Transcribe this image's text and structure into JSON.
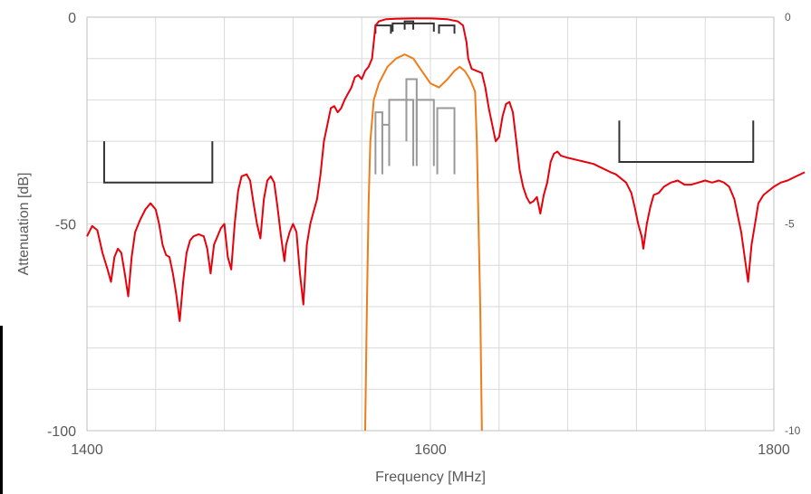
{
  "chart_data": {
    "type": "line",
    "title": "",
    "xlabel": "Frequency [MHz]",
    "ylabel": "Attenuation [dB]",
    "xlim": [
      1400,
      1800
    ],
    "ylim": [
      -100,
      0
    ],
    "y2lim": [
      -10,
      0
    ],
    "x_ticks": [
      "1400",
      "1600",
      "1800"
    ],
    "y_ticks": [
      "0",
      "-50",
      "-100"
    ],
    "y2_ticks": [
      "0",
      "-5",
      "-10"
    ],
    "grid": true,
    "colors": {
      "wide_response": "#e8000b",
      "passband_response": "#f07c18",
      "spec_outline": "#333333",
      "spec_passband": "#999999",
      "grid": "#d9d9d9"
    },
    "series": [
      {
        "axis": "left",
        "color": "#e8000b",
        "points": [
          [
            1400,
            -53
          ],
          [
            1403,
            -50.5
          ],
          [
            1406,
            -51.5
          ],
          [
            1409,
            -57
          ],
          [
            1412,
            -61
          ],
          [
            1414,
            -64
          ],
          [
            1416,
            -58
          ],
          [
            1418,
            -56
          ],
          [
            1420,
            -57
          ],
          [
            1422,
            -62
          ],
          [
            1424,
            -67.5
          ],
          [
            1426,
            -58
          ],
          [
            1428,
            -52
          ],
          [
            1431,
            -49
          ],
          [
            1434,
            -46.5
          ],
          [
            1437,
            -45
          ],
          [
            1440,
            -46.5
          ],
          [
            1442,
            -50
          ],
          [
            1444,
            -55
          ],
          [
            1446,
            -57.5
          ],
          [
            1448,
            -58
          ],
          [
            1450,
            -62
          ],
          [
            1452,
            -67
          ],
          [
            1454,
            -73.5
          ],
          [
            1456,
            -64
          ],
          [
            1458,
            -57
          ],
          [
            1460,
            -54
          ],
          [
            1462,
            -53
          ],
          [
            1465,
            -52.5
          ],
          [
            1468,
            -53
          ],
          [
            1470,
            -56
          ],
          [
            1472,
            -62
          ],
          [
            1474,
            -55
          ],
          [
            1476,
            -53
          ],
          [
            1478,
            -51
          ],
          [
            1480,
            -50
          ],
          [
            1482,
            -58
          ],
          [
            1484,
            -61
          ],
          [
            1486,
            -50
          ],
          [
            1488,
            -42
          ],
          [
            1490,
            -38.5
          ],
          [
            1493,
            -38
          ],
          [
            1495,
            -39.5
          ],
          [
            1497,
            -45
          ],
          [
            1499,
            -50
          ],
          [
            1501,
            -53.5
          ],
          [
            1503,
            -44
          ],
          [
            1505,
            -39.5
          ],
          [
            1507,
            -38.5
          ],
          [
            1509,
            -40
          ],
          [
            1511,
            -46
          ],
          [
            1513,
            -53
          ],
          [
            1515,
            -59
          ],
          [
            1516,
            -55
          ],
          [
            1518,
            -52
          ],
          [
            1520,
            -50
          ],
          [
            1522,
            -52
          ],
          [
            1524,
            -62
          ],
          [
            1526,
            -69.5
          ],
          [
            1528,
            -55
          ],
          [
            1530,
            -50
          ],
          [
            1532,
            -47
          ],
          [
            1534,
            -44
          ],
          [
            1536,
            -38
          ],
          [
            1538,
            -30
          ],
          [
            1540,
            -26
          ],
          [
            1542,
            -22
          ],
          [
            1544,
            -21.5
          ],
          [
            1546,
            -23
          ],
          [
            1548,
            -22
          ],
          [
            1550,
            -20
          ],
          [
            1552,
            -18.5
          ],
          [
            1554,
            -17
          ],
          [
            1556,
            -14.5
          ],
          [
            1558,
            -14
          ],
          [
            1560,
            -15
          ],
          [
            1562,
            -13
          ],
          [
            1564,
            -12
          ],
          [
            1566,
            -10
          ],
          [
            1567,
            -6
          ],
          [
            1568,
            -2
          ],
          [
            1570,
            -1
          ],
          [
            1574,
            -0.5
          ],
          [
            1580,
            -0.4
          ],
          [
            1590,
            -0.3
          ],
          [
            1600,
            -0.3
          ],
          [
            1610,
            -0.5
          ],
          [
            1616,
            -1
          ],
          [
            1619,
            -2
          ],
          [
            1621,
            -6
          ],
          [
            1622,
            -10
          ],
          [
            1624,
            -12.5
          ],
          [
            1627,
            -13
          ],
          [
            1630,
            -13.5
          ],
          [
            1632,
            -17
          ],
          [
            1634,
            -22
          ],
          [
            1636,
            -26
          ],
          [
            1638,
            -30
          ],
          [
            1640,
            -29
          ],
          [
            1642,
            -24
          ],
          [
            1644,
            -21
          ],
          [
            1646,
            -20.5
          ],
          [
            1648,
            -23
          ],
          [
            1650,
            -30
          ],
          [
            1652,
            -37
          ],
          [
            1654,
            -41
          ],
          [
            1656,
            -43.5
          ],
          [
            1658,
            -45
          ],
          [
            1660,
            -44.5
          ],
          [
            1662,
            -43.5
          ],
          [
            1664,
            -47.5
          ],
          [
            1666,
            -43
          ],
          [
            1668,
            -40
          ],
          [
            1670,
            -35
          ],
          [
            1672,
            -33
          ],
          [
            1674,
            -32.5
          ],
          [
            1676,
            -33.5
          ],
          [
            1680,
            -34
          ],
          [
            1685,
            -34.5
          ],
          [
            1690,
            -35
          ],
          [
            1695,
            -35.5
          ],
          [
            1700,
            -36.5
          ],
          [
            1705,
            -37.5
          ],
          [
            1708,
            -38
          ],
          [
            1711,
            -39
          ],
          [
            1714,
            -40
          ],
          [
            1717,
            -42.5
          ],
          [
            1719,
            -46
          ],
          [
            1721,
            -50
          ],
          [
            1723,
            -53
          ],
          [
            1724,
            -56
          ],
          [
            1726,
            -50
          ],
          [
            1728,
            -46
          ],
          [
            1730,
            -43
          ],
          [
            1733,
            -42.5
          ],
          [
            1736,
            -41
          ],
          [
            1740,
            -40
          ],
          [
            1744,
            -39.5
          ],
          [
            1748,
            -40.5
          ],
          [
            1752,
            -40.5
          ],
          [
            1756,
            -40
          ],
          [
            1760,
            -39.5
          ],
          [
            1764,
            -40
          ],
          [
            1768,
            -39.5
          ],
          [
            1771,
            -40
          ],
          [
            1774,
            -41
          ],
          [
            1777,
            -44
          ],
          [
            1779,
            -48
          ],
          [
            1781,
            -52
          ],
          [
            1783,
            -58
          ],
          [
            1785,
            -64
          ],
          [
            1787,
            -55
          ],
          [
            1789,
            -50
          ],
          [
            1791,
            -45
          ],
          [
            1794,
            -43
          ],
          [
            1797,
            -42
          ],
          [
            1800,
            -41
          ],
          [
            1804,
            -40
          ],
          [
            1808,
            -39.5
          ],
          [
            1813,
            -38.5
          ],
          [
            1818,
            -37.5
          ]
        ]
      },
      {
        "axis": "right",
        "color": "#f07c18",
        "points": [
          [
            1562,
            -10
          ],
          [
            1563,
            -7
          ],
          [
            1564,
            -4.5
          ],
          [
            1565,
            -3
          ],
          [
            1567,
            -2
          ],
          [
            1570,
            -1.6
          ],
          [
            1575,
            -1.2
          ],
          [
            1580,
            -1
          ],
          [
            1585,
            -0.9
          ],
          [
            1590,
            -1
          ],
          [
            1595,
            -1.3
          ],
          [
            1600,
            -1.6
          ],
          [
            1605,
            -1.7
          ],
          [
            1610,
            -1.5
          ],
          [
            1614,
            -1.3
          ],
          [
            1617,
            -1.2
          ],
          [
            1620,
            -1.3
          ],
          [
            1623,
            -1.5
          ],
          [
            1626,
            -1.8
          ],
          [
            1627,
            -3
          ],
          [
            1628,
            -5
          ],
          [
            1629,
            -7
          ],
          [
            1630,
            -10
          ]
        ]
      }
    ],
    "spec_masks": [
      {
        "axis": "left",
        "color": "#333333",
        "x": [
          1410,
          1473
        ],
        "y": -40,
        "tick_top": -30
      },
      {
        "axis": "left",
        "color": "#333333",
        "x": [
          1710,
          1788
        ],
        "y": -35,
        "tick_top": -25
      },
      {
        "axis": "right",
        "color": "#333333",
        "x": [
          1568,
          1577
        ],
        "y": -0.2,
        "tick_top": -0.4
      },
      {
        "axis": "right",
        "color": "#333333",
        "x": [
          1578,
          1602
        ],
        "y": -0.15,
        "tick_top": -0.35
      },
      {
        "axis": "right",
        "color": "#333333",
        "x": [
          1585,
          1590
        ],
        "y": -0.1,
        "tick_top": -0.3
      },
      {
        "axis": "right",
        "color": "#333333",
        "x": [
          1605,
          1614
        ],
        "y": -0.2,
        "tick_top": -0.4
      }
    ],
    "spec_passband": [
      {
        "axis": "right",
        "color": "#999999",
        "x": [
          1568,
          1572
        ],
        "y": -2.3,
        "tick_bottom": -3.8
      },
      {
        "axis": "right",
        "color": "#999999",
        "x": [
          1572,
          1576
        ],
        "y": -2.6,
        "tick_bottom": -3.5
      },
      {
        "axis": "right",
        "color": "#999999",
        "x": [
          1576,
          1590
        ],
        "y": -2.0,
        "tick_bottom": -3.6
      },
      {
        "axis": "right",
        "color": "#999999",
        "x": [
          1586,
          1592
        ],
        "y": -1.5,
        "tick_bottom": -3.0
      },
      {
        "axis": "right",
        "color": "#999999",
        "x": [
          1592,
          1602
        ],
        "y": -2.0,
        "tick_bottom": -3.6
      },
      {
        "axis": "right",
        "color": "#999999",
        "x": [
          1604,
          1614
        ],
        "y": -2.2,
        "tick_bottom": -3.8
      }
    ]
  }
}
